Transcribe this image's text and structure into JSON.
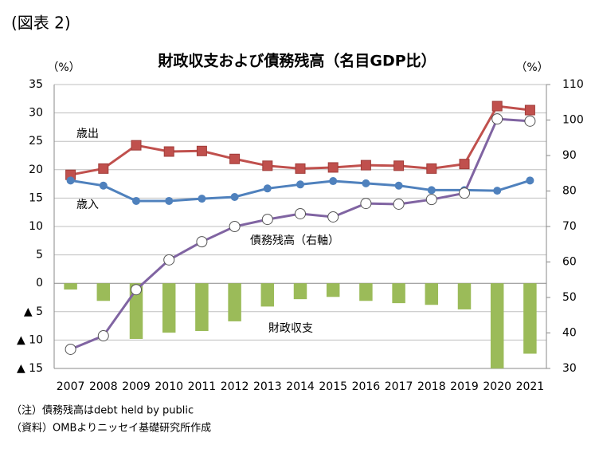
{
  "figure_label": "(図表 2)",
  "notes": [
    "（注）債務残高はdebt held by public",
    "（資料）OMBよりニッセイ基礎研究所作成"
  ],
  "chart_data": {
    "type": "combo",
    "title": "財政収支および債務残高（名目GDP比）",
    "y_unit": "（%）",
    "y2_unit": "（%）",
    "categories": [
      "2007",
      "2008",
      "2009",
      "2010",
      "2011",
      "2012",
      "2013",
      "2014",
      "2015",
      "2016",
      "2017",
      "2018",
      "2019",
      "2020",
      "2021"
    ],
    "ylim": [
      -15,
      35
    ],
    "yticks": [
      35,
      30,
      25,
      20,
      15,
      10,
      5,
      0,
      {
        "value": -5,
        "label": "▲ 5"
      },
      {
        "value": -10,
        "label": "▲ 10"
      },
      {
        "value": -15,
        "label": "▲ 15"
      }
    ],
    "y2lim": [
      30,
      110
    ],
    "y2ticks": [
      110,
      100,
      90,
      80,
      70,
      60,
      50,
      40,
      30
    ],
    "grid": true,
    "series": [
      {
        "name": "財政収支",
        "kind": "bar",
        "color": "#9bbb59",
        "values": [
          -1.1,
          -3.1,
          -9.8,
          -8.7,
          -8.4,
          -6.7,
          -4.1,
          -2.8,
          -2.4,
          -3.1,
          -3.5,
          -3.8,
          -4.6,
          -15.0,
          -12.4
        ]
      },
      {
        "name": "歳出",
        "kind": "line",
        "marker": "square",
        "color": "#c0504d",
        "values": [
          19.1,
          20.2,
          24.3,
          23.2,
          23.3,
          21.9,
          20.7,
          20.2,
          20.4,
          20.8,
          20.7,
          20.2,
          21.0,
          31.2,
          30.5
        ]
      },
      {
        "name": "歳入",
        "kind": "line",
        "marker": "circle",
        "color": "#4f81bd",
        "values": [
          18.1,
          17.2,
          14.5,
          14.5,
          14.9,
          15.2,
          16.7,
          17.4,
          18.0,
          17.6,
          17.2,
          16.4,
          16.4,
          16.3,
          18.1
        ]
      },
      {
        "name": "債務残高（右軸）",
        "kind": "line",
        "marker": "open-circle",
        "axis": "y2",
        "color": "#8064a2",
        "values": [
          35.4,
          39.2,
          52.2,
          60.6,
          65.7,
          70.0,
          72.0,
          73.6,
          72.7,
          76.5,
          76.3,
          77.6,
          79.4,
          100.3,
          99.7
        ]
      }
    ]
  }
}
